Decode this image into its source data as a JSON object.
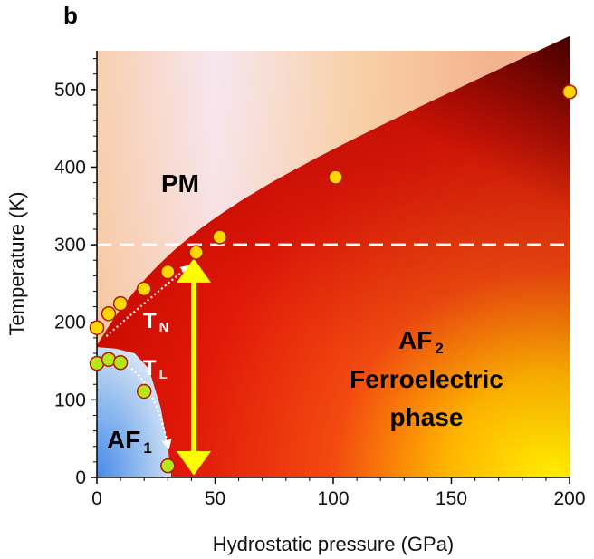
{
  "chart_data": {
    "type": "scatter",
    "panel_label": "b",
    "xlabel": "Hydrostatic pressure (GPa)",
    "ylabel": "Temperature (K)",
    "xlim": [
      0,
      200
    ],
    "ylim": [
      0,
      550
    ],
    "x_ticks": [
      "0",
      "50",
      "100",
      "150",
      "200"
    ],
    "y_ticks": [
      "0",
      "100",
      "200",
      "300",
      "400",
      "500"
    ],
    "x_tick_values": [
      0,
      50,
      100,
      150,
      200
    ],
    "y_tick_values": [
      0,
      100,
      200,
      300,
      400,
      500
    ],
    "reference_line": {
      "y": 300,
      "style": "dashed",
      "color": "#ffffff"
    },
    "arrow": {
      "x": 41,
      "y_from": 285,
      "y_to": 0,
      "color": "#ffff00"
    },
    "region_labels": {
      "pm": "PM",
      "tn_main": "T",
      "tn_sub": "N",
      "tl_main": "T",
      "tl_sub": "L",
      "af1_main": "AF",
      "af1_sub": "1",
      "af2_main": "AF",
      "af2_sub": "2",
      "af2_line2": "Ferroelectric",
      "af2_line3": "phase"
    },
    "series": [
      {
        "marker_color": "#ffd700",
        "x": [
          0,
          5,
          10,
          20,
          30,
          42,
          52,
          101,
          200
        ],
        "y": [
          193,
          211,
          224,
          243,
          265,
          290,
          310,
          387,
          497
        ]
      },
      {
        "marker_color": "#b5e61d",
        "x": [
          0,
          5,
          10,
          20,
          30
        ],
        "y": [
          147,
          152,
          148,
          111,
          15
        ]
      }
    ],
    "colors": {
      "pm_warm": "#f4a870",
      "pm_light": "#f8e8f0",
      "af2_red": "#e41a0a",
      "af2_dark": "#4a0000",
      "af2_yellow": "#ffd200",
      "af1_blue": "#5a98e8"
    }
  }
}
